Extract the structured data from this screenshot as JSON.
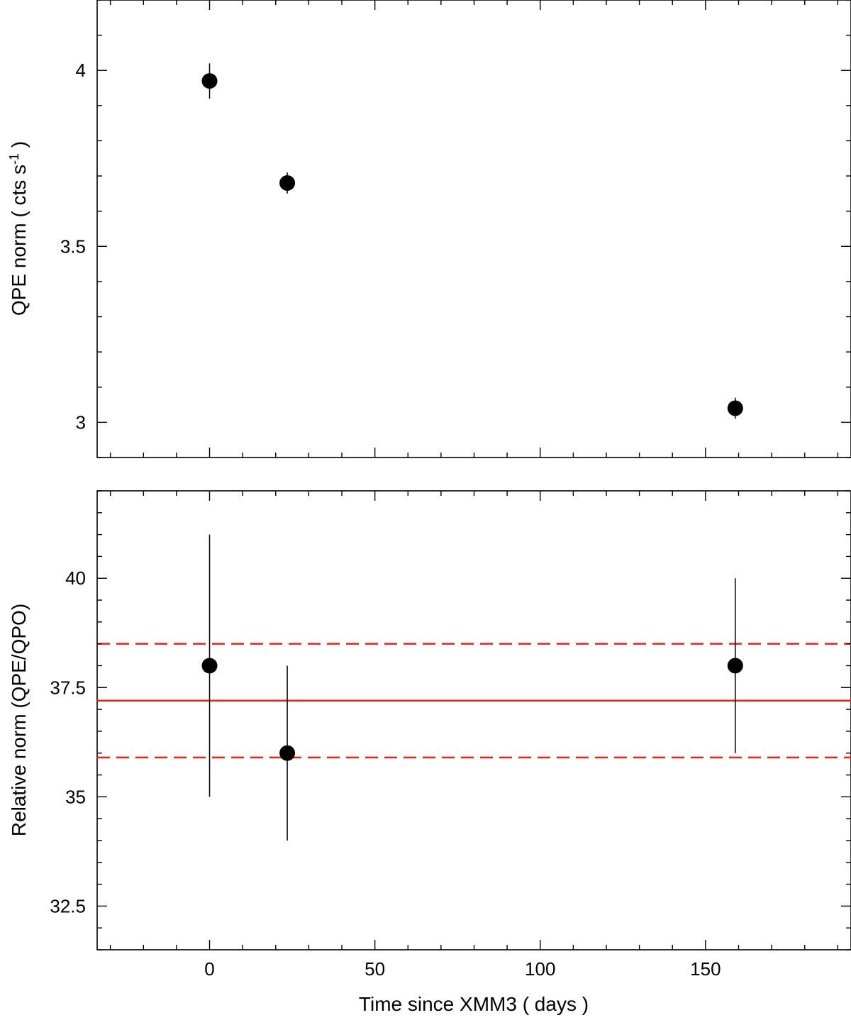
{
  "chart_data": [
    {
      "type": "scatter",
      "panel": "top",
      "title": "",
      "xlabel": "",
      "ylabel": "QPE norm ( cts s",
      "ylabel_superscript": "-1",
      "ylabel_suffix": " )",
      "xlim": [
        -34,
        194
      ],
      "ylim": [
        2.9,
        4.2
      ],
      "x_ticks": [
        0,
        50,
        100,
        150
      ],
      "x_tick_labels_shown": false,
      "y_ticks": [
        3,
        3.5,
        4
      ],
      "y_tick_labels": [
        "3",
        "3.5",
        "4"
      ],
      "grid": false,
      "legend": "none",
      "series": [
        {
          "color": "#000000",
          "marker": "filled-circle",
          "points": [
            {
              "x": 0,
              "y": 3.97,
              "yerr_low": 3.92,
              "yerr_high": 4.02
            },
            {
              "x": 23.5,
              "y": 3.68,
              "yerr_low": 3.65,
              "yerr_high": 3.71
            },
            {
              "x": 159,
              "y": 3.04,
              "yerr_low": 3.01,
              "yerr_high": 3.07
            }
          ]
        }
      ],
      "reference_lines": []
    },
    {
      "type": "scatter",
      "panel": "bottom",
      "title": "",
      "xlabel": "Time since XMM3 ( days )",
      "ylabel": "Relative norm (QPE/QPO)",
      "xlim": [
        -34,
        194
      ],
      "ylim": [
        31.5,
        42
      ],
      "x_ticks": [
        0,
        50,
        100,
        150
      ],
      "x_tick_labels": [
        "0",
        "50",
        "100",
        "150"
      ],
      "y_ticks": [
        32.5,
        35,
        37.5,
        40
      ],
      "y_tick_labels": [
        "32.5",
        "35",
        "37.5",
        "40"
      ],
      "grid": false,
      "legend": "none",
      "series": [
        {
          "color": "#000000",
          "marker": "filled-circle",
          "points": [
            {
              "x": 0,
              "y": 38,
              "yerr_low": 35,
              "yerr_high": 41
            },
            {
              "x": 23.5,
              "y": 36,
              "yerr_low": 34,
              "yerr_high": 38
            },
            {
              "x": 159,
              "y": 38,
              "yerr_low": 36,
              "yerr_high": 40
            }
          ]
        }
      ],
      "reference_lines": [
        {
          "y": 37.2,
          "style": "solid",
          "color": "#e8231c"
        },
        {
          "y": 38.5,
          "style": "dashed",
          "color": "#e8231c"
        },
        {
          "y": 35.9,
          "style": "dashed",
          "color": "#e8231c"
        }
      ]
    }
  ]
}
